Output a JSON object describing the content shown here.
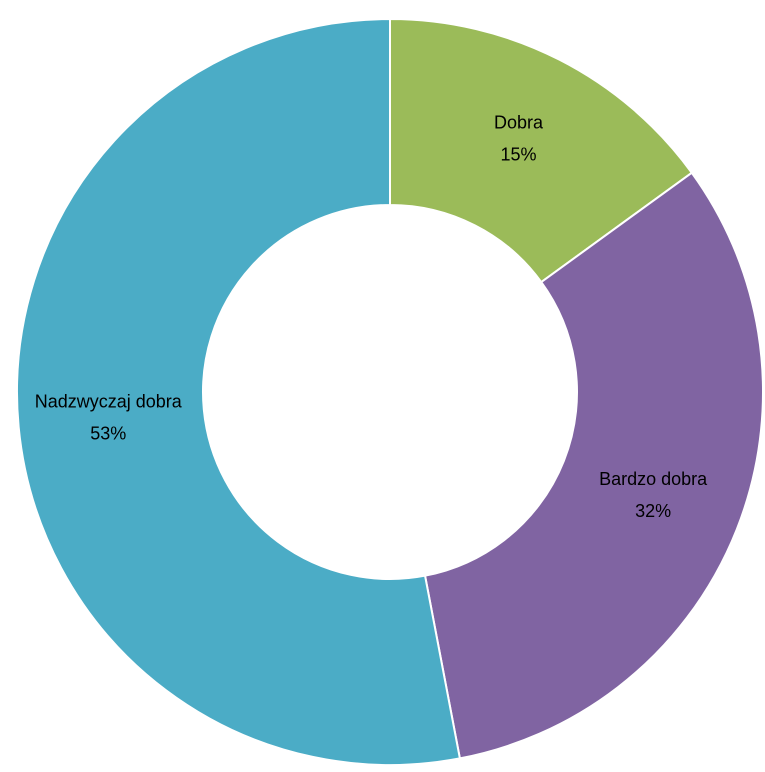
{
  "chart_data": {
    "type": "donut",
    "categories": [
      "Dobra",
      "Bardzo dobra",
      "Nadzwyczaj dobra"
    ],
    "values": [
      15,
      32,
      53
    ],
    "value_labels": [
      "15%",
      "32%",
      "53%"
    ],
    "colors": [
      "#9bbb59",
      "#8064a2",
      "#4bacc6"
    ]
  }
}
